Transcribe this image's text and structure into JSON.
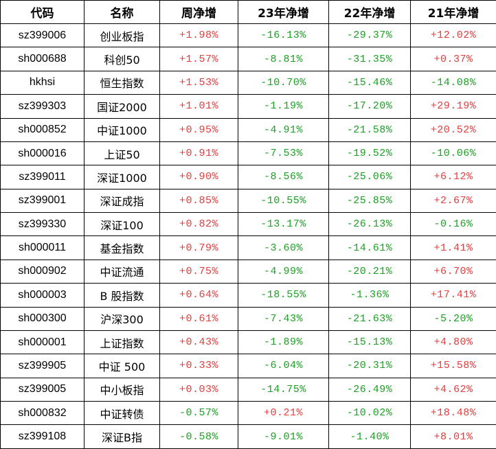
{
  "colors": {
    "positive": "#e53b3b",
    "negative": "#1ba023",
    "text": "#000000",
    "border": "#000000",
    "background": "#ffffff"
  },
  "chart_data": {
    "type": "table",
    "columns": [
      "代码",
      "名称",
      "周净增",
      "23年净增",
      "22年净增",
      "21年净增"
    ],
    "rows": [
      [
        "sz399006",
        "创业板指",
        "+1.98%",
        "-16.13%",
        "-29.37%",
        "+12.02%"
      ],
      [
        "sh000688",
        "科创50",
        "+1.57%",
        "-8.81%",
        "-31.35%",
        "+0.37%"
      ],
      [
        "hkhsi",
        "恒生指数",
        "+1.53%",
        "-10.70%",
        "-15.46%",
        "-14.08%"
      ],
      [
        "sz399303",
        "国证2000",
        "+1.01%",
        "-1.19%",
        "-17.20%",
        "+29.19%"
      ],
      [
        "sh000852",
        "中证1000",
        "+0.95%",
        "-4.91%",
        "-21.58%",
        "+20.52%"
      ],
      [
        "sh000016",
        "上证50",
        "+0.91%",
        "-7.53%",
        "-19.52%",
        "-10.06%"
      ],
      [
        "sz399011",
        "深证1000",
        "+0.90%",
        "-8.56%",
        "-25.06%",
        "+6.12%"
      ],
      [
        "sz399001",
        "深证成指",
        "+0.85%",
        "-10.55%",
        "-25.85%",
        "+2.67%"
      ],
      [
        "sz399330",
        "深证100",
        "+0.82%",
        "-13.17%",
        "-26.13%",
        "-0.16%"
      ],
      [
        "sh000011",
        "基金指数",
        "+0.79%",
        "-3.60%",
        "-14.61%",
        "+1.41%"
      ],
      [
        "sh000902",
        "中证流通",
        "+0.75%",
        "-4.99%",
        "-20.21%",
        "+6.70%"
      ],
      [
        "sh000003",
        "B 股指数",
        "+0.64%",
        "-18.55%",
        "-1.36%",
        "+17.41%"
      ],
      [
        "sh000300",
        "沪深300",
        "+0.61%",
        "-7.43%",
        "-21.63%",
        "-5.20%"
      ],
      [
        "sh000001",
        "上证指数",
        "+0.43%",
        "-1.89%",
        "-15.13%",
        "+4.80%"
      ],
      [
        "sz399905",
        "中证 500",
        "+0.33%",
        "-6.04%",
        "-20.31%",
        "+15.58%"
      ],
      [
        "sz399005",
        "中小板指",
        "+0.03%",
        "-14.75%",
        "-26.49%",
        "+4.62%"
      ],
      [
        "sh000832",
        "中证转债",
        "-0.57%",
        "+0.21%",
        "-10.02%",
        "+18.48%"
      ],
      [
        "sz399108",
        "深证B指",
        "-0.58%",
        "-9.01%",
        "-1.40%",
        "+8.01%"
      ]
    ]
  }
}
